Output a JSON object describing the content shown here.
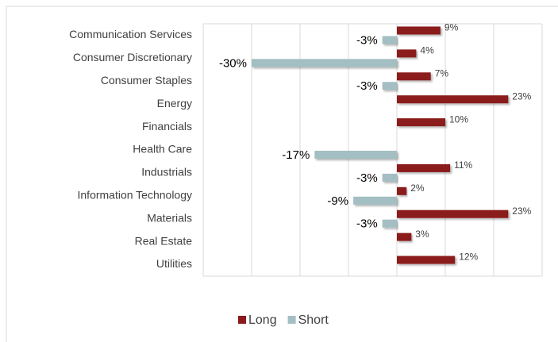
{
  "chart_data": {
    "type": "bar",
    "orientation": "horizontal",
    "categories": [
      "Communication Services",
      "Consumer Discretionary",
      "Consumer Staples",
      "Energy",
      "Financials",
      "Health Care",
      "Industrials",
      "Information Technology",
      "Materials",
      "Real Estate",
      "Utilities"
    ],
    "series": [
      {
        "name": "Long",
        "color": "#8b1a1a",
        "values": [
          9,
          4,
          7,
          23,
          10,
          null,
          11,
          2,
          23,
          3,
          12
        ],
        "value_labels": [
          "9%",
          "4%",
          "7%",
          "23%",
          "10%",
          null,
          "11%",
          "2%",
          "23%",
          "3%",
          "12%"
        ]
      },
      {
        "name": "Short",
        "color": "#a3bfc3",
        "values": [
          -3,
          -30,
          -3,
          null,
          null,
          -17,
          -3,
          -9,
          -3,
          null,
          null
        ],
        "value_labels": [
          "-3%",
          "-30%",
          "-3%",
          null,
          null,
          "-17%",
          "-3%",
          "-9%",
          "-3%",
          null,
          null
        ]
      }
    ],
    "xlim": [
      -40,
      30
    ],
    "xticks": [
      -40,
      -30,
      -20,
      -10,
      0,
      10,
      20,
      30
    ],
    "grid": true,
    "legend": "bottom"
  }
}
